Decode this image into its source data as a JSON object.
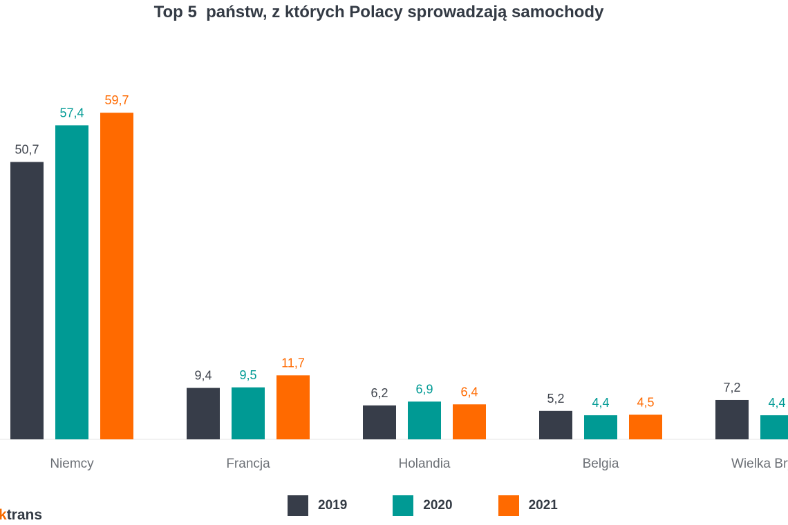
{
  "chart_data": {
    "type": "bar",
    "title": "Top 5  państw, z których Polacy sprowadzają samochody",
    "categories": [
      "Niemcy",
      "Francja",
      "Holandia",
      "Belgia",
      "Wielka Brytania"
    ],
    "series": [
      {
        "name": "2019",
        "color": "#373d49",
        "values": [
          50.7,
          9.4,
          6.2,
          5.2,
          7.2
        ],
        "labels": [
          "50,7",
          "9,4",
          "6,2",
          "5,2",
          "7,2"
        ]
      },
      {
        "name": "2020",
        "color": "#009a94",
        "values": [
          57.4,
          9.5,
          6.9,
          4.4,
          4.4
        ],
        "labels": [
          "57,4",
          "9,5",
          "6,9",
          "4,4",
          "4,4"
        ]
      },
      {
        "name": "2021",
        "color": "#ff6a00",
        "values": [
          59.7,
          11.7,
          6.4,
          4.5,
          null
        ],
        "labels": [
          "59,7",
          "11,7",
          "6,4",
          "4,5",
          ""
        ]
      }
    ],
    "ylim": [
      0,
      60
    ],
    "grid": false,
    "legend_position": "bottom"
  },
  "brand": {
    "accent": "k",
    "text": "trans"
  }
}
